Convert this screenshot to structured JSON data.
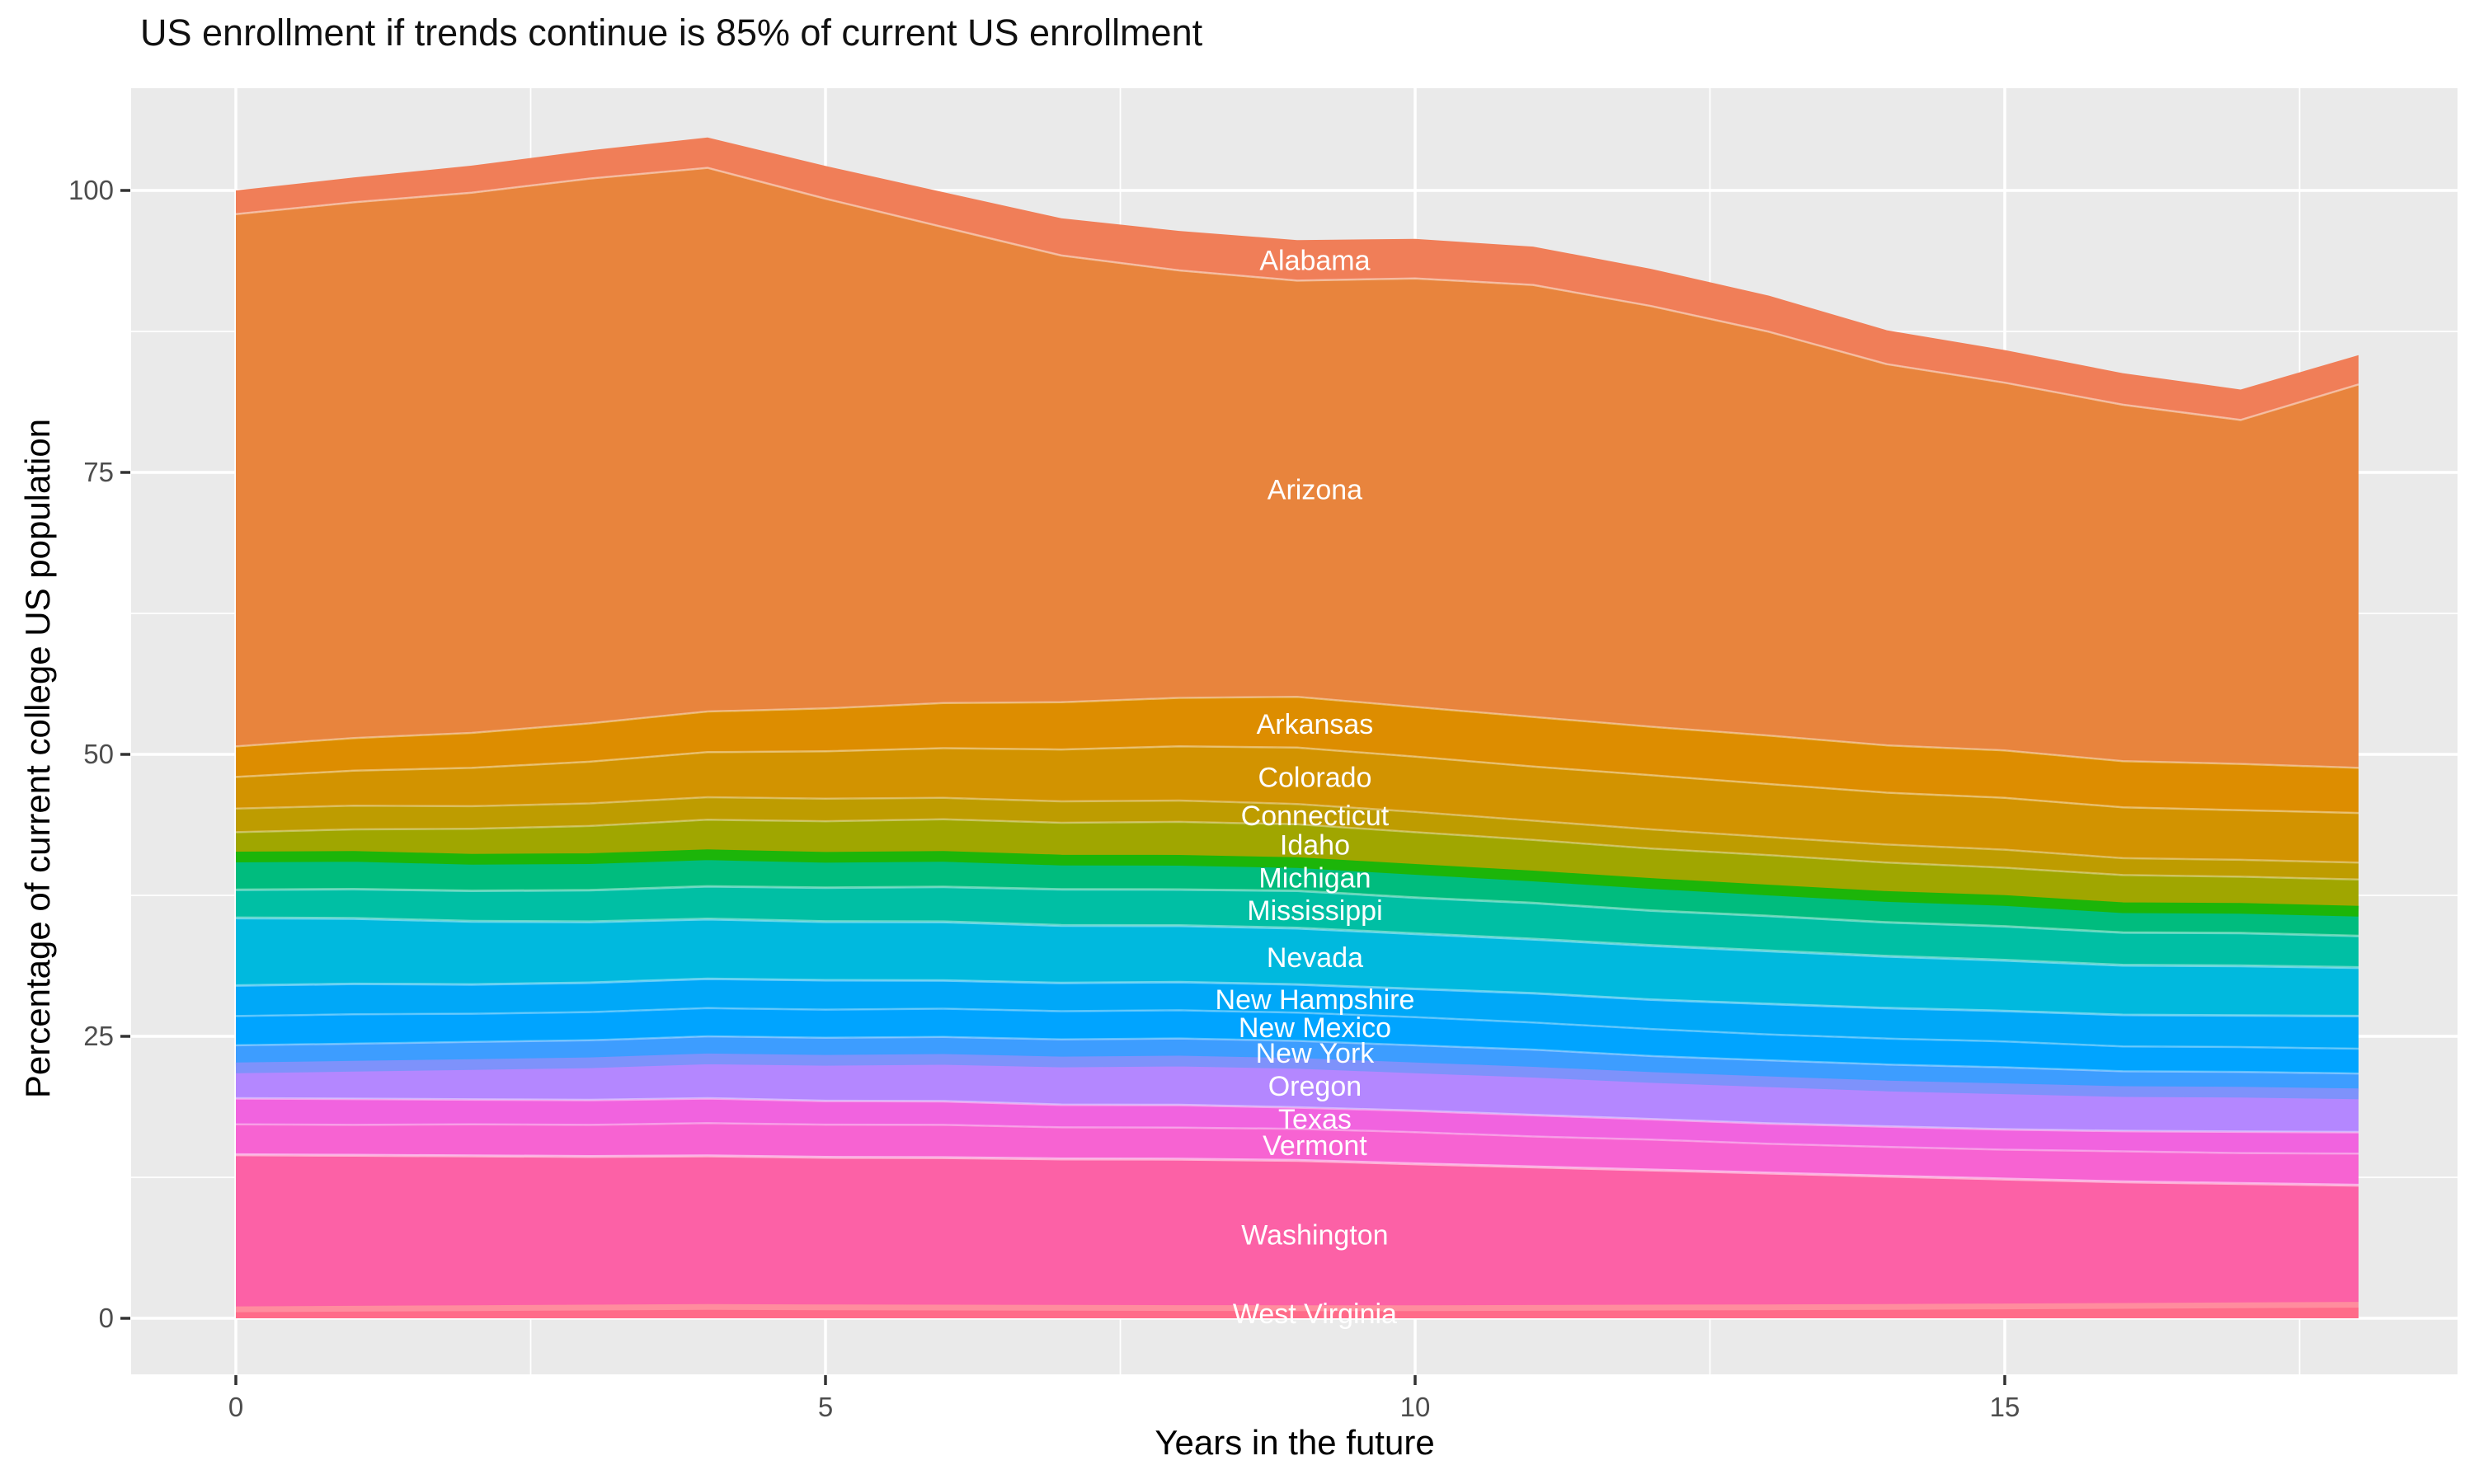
{
  "chart_data": {
    "type": "area",
    "stacked": true,
    "title": "US enrollment if trends continue is 85% of current US enrollment",
    "xlabel": "Years in the future",
    "ylabel": "Percentage of current college US population",
    "x": [
      0,
      1,
      2,
      3,
      4,
      5,
      6,
      7,
      8,
      9,
      10,
      11,
      12,
      13,
      14,
      15,
      16,
      17,
      18
    ],
    "x_ticks": [
      0,
      5,
      10,
      15
    ],
    "x_tick_labels": [
      "0",
      "5",
      "10",
      "15"
    ],
    "x_minor_ticks": [
      2.5,
      7.5,
      12.5,
      17.5
    ],
    "y_ticks": [
      0,
      25,
      50,
      75,
      100
    ],
    "y_tick_labels": [
      "0",
      "25",
      "50",
      "75",
      "100"
    ],
    "y_minor_ticks": [
      12.5,
      37.5,
      62.5,
      87.5
    ],
    "xlim": [
      -0.9,
      18.85
    ],
    "ylim": [
      -5,
      109
    ],
    "grid": true,
    "legend_position": "none",
    "label_year": 9.15,
    "colors": {
      "panel_bg": "#EAEAEA",
      "grid": "#FFFFFF",
      "tick_mark": "#333333",
      "tick_label": "#4D4D4D",
      "title_text": "#111111",
      "band_label_text": "#FFFFFF"
    },
    "series": [
      {
        "name": "Alabama",
        "color": "#F07E58",
        "values": [
          2.1,
          2.2,
          2.4,
          2.5,
          2.7,
          2.9,
          3.1,
          3.3,
          3.5,
          3.6,
          3.5,
          3.4,
          3.3,
          3.2,
          3.0,
          2.9,
          2.8,
          2.7,
          2.6
        ]
      },
      {
        "name": "Arizona",
        "color": "#E8843D",
        "edge": {
          "color": "rgba(255,255,255,0.45)",
          "width": 2.5
        },
        "values": [
          47.2,
          47.5,
          47.9,
          48.3,
          48.2,
          45.2,
          42.2,
          39.6,
          37.9,
          36.9,
          38.0,
          38.3,
          37.3,
          35.8,
          33.8,
          32.6,
          31.6,
          30.5,
          34.0
        ]
      },
      {
        "name": "Arkansas",
        "color": "#DD8D00",
        "edge": {
          "color": "rgba(255,255,255,0.4)",
          "width": 2.5
        },
        "values": [
          2.7,
          2.9,
          3.1,
          3.4,
          3.6,
          3.8,
          4.0,
          4.2,
          4.3,
          4.5,
          4.4,
          4.4,
          4.3,
          4.3,
          4.2,
          4.2,
          4.1,
          4.1,
          4.0
        ]
      },
      {
        "name": "Colorado",
        "color": "#D29300",
        "edge": {
          "color": "rgba(255,255,255,0.4)",
          "width": 2.5
        },
        "values": [
          2.8,
          3.1,
          3.4,
          3.7,
          4.0,
          4.2,
          4.4,
          4.6,
          4.8,
          5.0,
          4.9,
          4.8,
          4.8,
          4.7,
          4.6,
          4.6,
          4.5,
          4.4,
          4.4
        ]
      },
      {
        "name": "Connecticut",
        "color": "#BE9C00",
        "edge": {
          "color": "rgba(255,255,255,0.35)",
          "width": 2.5
        },
        "values": [
          2.1,
          2.1,
          2.0,
          2.0,
          2.0,
          2.0,
          1.9,
          1.9,
          1.9,
          1.8,
          1.8,
          1.7,
          1.7,
          1.6,
          1.6,
          1.6,
          1.5,
          1.5,
          1.5
        ]
      },
      {
        "name": "Idaho",
        "color": "#A0A600",
        "edge": {
          "color": "rgba(255,255,255,0.35)",
          "width": 2.5
        },
        "values": [
          2.2,
          2.4,
          2.7,
          2.9,
          3.1,
          3.2,
          3.3,
          3.3,
          3.4,
          3.4,
          3.3,
          3.2,
          3.1,
          3.1,
          3.0,
          2.9,
          2.9,
          2.8,
          2.8
        ]
      },
      {
        "name": "Michigan",
        "color": "#00BC7E",
        "edge": {
          "color": "#1CB509",
          "width": 13
        },
        "values": [
          2.9,
          2.9,
          2.8,
          2.8,
          2.8,
          2.7,
          2.7,
          2.6,
          2.6,
          2.5,
          2.5,
          2.4,
          2.4,
          2.3,
          2.3,
          2.3,
          2.2,
          2.2,
          2.2
        ]
      },
      {
        "name": "Mississippi",
        "color": "#00BFA4",
        "edge": {
          "color": "rgba(255,255,255,0.4)",
          "width": 3
        },
        "values": [
          2.5,
          2.6,
          2.7,
          2.8,
          2.9,
          3.0,
          3.1,
          3.2,
          3.2,
          3.3,
          3.2,
          3.2,
          3.1,
          3.1,
          3.0,
          3.0,
          2.9,
          2.9,
          2.8
        ]
      },
      {
        "name": "Nevada",
        "color": "#00B9DE",
        "edge": {
          "color": "rgba(255,255,255,0.4)",
          "width": 3.5
        },
        "values": [
          6.0,
          5.8,
          5.6,
          5.4,
          5.3,
          5.2,
          5.2,
          5.1,
          5.0,
          5.0,
          4.9,
          4.8,
          4.8,
          4.7,
          4.6,
          4.5,
          4.4,
          4.4,
          4.3
        ]
      },
      {
        "name": "New Hampshire",
        "color": "#00A8F8",
        "edge": {
          "color": "rgba(255,255,255,0.4)",
          "width": 3
        },
        "values": [
          2.7,
          2.7,
          2.6,
          2.6,
          2.6,
          2.6,
          2.5,
          2.5,
          2.5,
          2.5,
          2.5,
          2.6,
          2.6,
          2.7,
          2.7,
          2.7,
          2.8,
          2.8,
          2.9
        ]
      },
      {
        "name": "New Mexico",
        "color": "#00A4FF",
        "edge": {
          "color": "rgba(255,255,255,0.35)",
          "width": 2.5
        },
        "values": [
          2.6,
          2.6,
          2.5,
          2.5,
          2.5,
          2.5,
          2.5,
          2.5,
          2.5,
          2.5,
          2.5,
          2.4,
          2.4,
          2.3,
          2.3,
          2.3,
          2.2,
          2.2,
          2.2
        ]
      },
      {
        "name": "New York",
        "color": "#3D9DFF",
        "edge": {
          "color": "rgba(255,255,255,0.35)",
          "width": 2.5
        },
        "values": [
          2.0,
          2.0,
          2.0,
          2.0,
          2.0,
          2.0,
          2.0,
          2.0,
          2.0,
          2.0,
          2.0,
          2.0,
          1.9,
          1.9,
          1.9,
          1.9,
          1.8,
          1.8,
          1.8
        ]
      },
      {
        "name": "Oregon",
        "color": "#B487FF",
        "edge": {
          "color": "#7E92FB",
          "width": 13
        },
        "values": [
          2.7,
          2.9,
          3.1,
          3.3,
          3.5,
          3.6,
          3.7,
          3.8,
          3.9,
          3.9,
          3.8,
          3.8,
          3.7,
          3.7,
          3.6,
          3.6,
          3.5,
          3.5,
          3.4
        ]
      },
      {
        "name": "Texas",
        "color": "#F163DF",
        "edge": {
          "color": "rgba(255,255,255,0.4)",
          "width": 3
        },
        "values": [
          2.3,
          2.3,
          2.2,
          2.2,
          2.2,
          2.1,
          2.1,
          2.0,
          2.0,
          1.9,
          1.9,
          1.9,
          1.8,
          1.8,
          1.8,
          1.8,
          1.8,
          1.9,
          1.9
        ]
      },
      {
        "name": "Vermont",
        "color": "#F763D2",
        "edge": {
          "color": "rgba(255,255,255,0.35)",
          "width": 2.5
        },
        "values": [
          2.7,
          2.7,
          2.8,
          2.8,
          2.9,
          2.9,
          2.9,
          2.8,
          2.8,
          2.8,
          2.8,
          2.7,
          2.7,
          2.6,
          2.6,
          2.6,
          2.7,
          2.7,
          2.8
        ]
      },
      {
        "name": "Washington",
        "color": "#FC61A6",
        "edge": {
          "color": "rgba(255,255,255,0.5)",
          "width": 3.5
        },
        "values": [
          13.7,
          13.6,
          13.5,
          13.4,
          13.4,
          13.3,
          13.3,
          13.2,
          13.2,
          13.1,
          12.8,
          12.5,
          12.2,
          11.9,
          11.6,
          11.3,
          11.0,
          10.8,
          10.6
        ]
      },
      {
        "name": "West Virginia",
        "color": "#FF6B89",
        "edge": {
          "color": "#FF8D9E",
          "width": 7
        },
        "values": [
          0.8,
          0.85,
          0.9,
          0.95,
          1.0,
          0.97,
          0.95,
          0.93,
          0.91,
          0.9,
          0.9,
          0.92,
          0.95,
          0.97,
          1.0,
          1.05,
          1.1,
          1.15,
          1.2
        ]
      }
    ]
  }
}
